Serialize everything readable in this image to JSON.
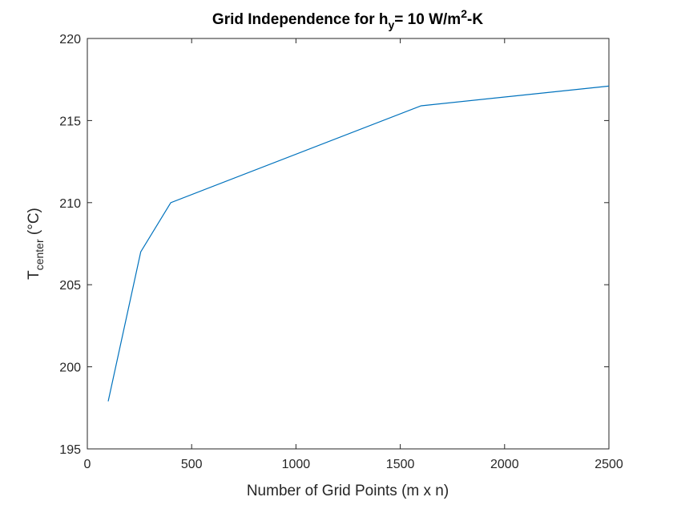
{
  "chart_data": {
    "type": "line",
    "title": {
      "prefix": "Grid Independence for h",
      "sub": "y",
      "middle": "= 10 W/m",
      "sup": "2",
      "suffix": "-K"
    },
    "xlabel": "Number of Grid Points (m x n)",
    "ylabel": {
      "main": "T",
      "sub": "center",
      "unit": " (°C)"
    },
    "xlim": [
      0,
      2500
    ],
    "ylim": [
      195,
      220
    ],
    "xticks": [
      0,
      500,
      1000,
      1500,
      2000,
      2500
    ],
    "yticks": [
      195,
      200,
      205,
      210,
      215,
      220
    ],
    "grid": false,
    "series": [
      {
        "color": "#0072BD",
        "x": [
          100,
          256,
          400,
          1600,
          2500
        ],
        "y": [
          197.9,
          207.0,
          210.0,
          215.9,
          217.1
        ]
      }
    ]
  }
}
